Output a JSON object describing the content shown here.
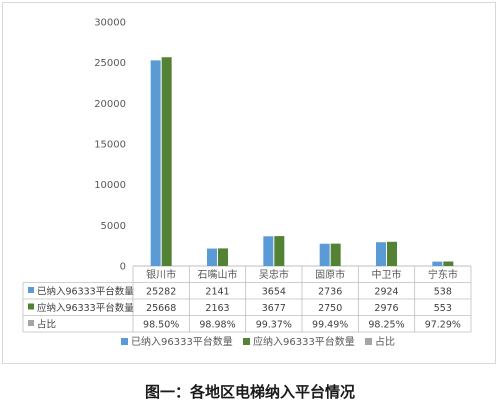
{
  "caption": "图一：各地区电梯纳入平台情况",
  "chart_data": {
    "type": "bar",
    "categories": [
      "银川市",
      "石嘴山市",
      "吴忠市",
      "固原市",
      "中卫市",
      "宁东市"
    ],
    "series": [
      {
        "name": "已纳入96333平台数量",
        "values": [
          25282,
          2141,
          3654,
          2736,
          2924,
          538
        ],
        "labels": [
          "25282",
          "2141",
          "3654",
          "2736",
          "2924",
          "538"
        ],
        "color": "#5b9bd5"
      },
      {
        "name": "应纳入96333平台数量",
        "values": [
          25668,
          2163,
          3677,
          2750,
          2976,
          553
        ],
        "labels": [
          "25668",
          "2163",
          "3677",
          "2750",
          "2976",
          "553"
        ],
        "color": "#548235"
      },
      {
        "name": "占比",
        "values": [
          "98.50%",
          "98.98%",
          "99.37%",
          "99.49%",
          "98.25%",
          "97.29%"
        ],
        "labels": [
          "98.50%",
          "98.98%",
          "99.37%",
          "99.49%",
          "98.25%",
          "97.29%"
        ],
        "color": "#a5a5a5"
      }
    ],
    "yticks": [
      "0",
      "5000",
      "10000",
      "15000",
      "20000",
      "25000",
      "30000"
    ],
    "ylim": [
      0,
      30000
    ],
    "grid": false,
    "legend": "bottom",
    "data_table": true
  }
}
